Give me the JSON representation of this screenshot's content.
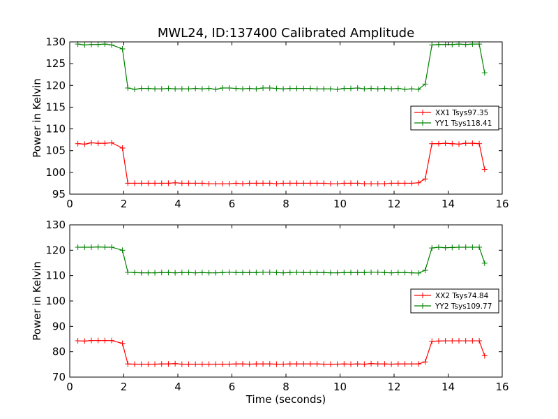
{
  "title": "MWL24, ID:137400 Calibrated Amplitude",
  "chart_data": [
    {
      "type": "line",
      "ylabel": "Power in Kelvin",
      "xlabel": "",
      "xlim": [
        0,
        16
      ],
      "ylim": [
        95,
        130
      ],
      "xticks": [
        "0",
        "2",
        "4",
        "6",
        "8",
        "10",
        "12",
        "14",
        "16"
      ],
      "yticks": [
        "95",
        "100",
        "105",
        "110",
        "115",
        "120",
        "125",
        "130"
      ],
      "legend_position": "right",
      "series": [
        {
          "name": "XX1 Tsys97.35",
          "color": "#ff0000",
          "x": [
            0.3,
            0.55,
            0.8,
            1.05,
            1.3,
            1.55,
            1.95,
            2.15,
            2.4,
            2.65,
            2.9,
            3.15,
            3.4,
            3.65,
            3.9,
            4.15,
            4.4,
            4.65,
            4.9,
            5.15,
            5.4,
            5.65,
            5.9,
            6.15,
            6.4,
            6.65,
            6.9,
            7.15,
            7.4,
            7.65,
            7.9,
            8.15,
            8.4,
            8.65,
            8.9,
            9.15,
            9.4,
            9.65,
            9.9,
            10.15,
            10.4,
            10.65,
            10.9,
            11.15,
            11.4,
            11.65,
            11.9,
            12.15,
            12.4,
            12.65,
            12.9,
            13.15,
            13.4,
            13.65,
            13.9,
            14.15,
            14.4,
            14.65,
            14.9,
            15.15,
            15.35
          ],
          "y": [
            106.6,
            106.5,
            106.8,
            106.7,
            106.7,
            106.8,
            105.6,
            97.5,
            97.5,
            97.5,
            97.5,
            97.5,
            97.5,
            97.5,
            97.6,
            97.5,
            97.5,
            97.5,
            97.5,
            97.4,
            97.4,
            97.4,
            97.4,
            97.5,
            97.4,
            97.5,
            97.5,
            97.5,
            97.5,
            97.4,
            97.5,
            97.5,
            97.5,
            97.5,
            97.5,
            97.5,
            97.5,
            97.4,
            97.4,
            97.5,
            97.5,
            97.5,
            97.4,
            97.4,
            97.4,
            97.4,
            97.5,
            97.5,
            97.5,
            97.5,
            97.6,
            98.5,
            106.6,
            106.6,
            106.7,
            106.6,
            106.5,
            106.7,
            106.7,
            106.6,
            100.7
          ]
        },
        {
          "name": "YY1 Tsys118.41",
          "color": "#008000",
          "x": [
            0.3,
            0.55,
            0.8,
            1.05,
            1.3,
            1.55,
            1.95,
            2.15,
            2.4,
            2.65,
            2.9,
            3.15,
            3.4,
            3.65,
            3.9,
            4.15,
            4.4,
            4.65,
            4.9,
            5.15,
            5.4,
            5.65,
            5.9,
            6.15,
            6.4,
            6.65,
            6.9,
            7.15,
            7.4,
            7.65,
            7.9,
            8.15,
            8.4,
            8.65,
            8.9,
            9.15,
            9.4,
            9.65,
            9.9,
            10.15,
            10.4,
            10.65,
            10.9,
            11.15,
            11.4,
            11.65,
            11.9,
            12.15,
            12.4,
            12.65,
            12.9,
            13.15,
            13.4,
            13.65,
            13.9,
            14.15,
            14.4,
            14.65,
            14.9,
            15.15,
            15.35
          ],
          "y": [
            129.5,
            129.3,
            129.4,
            129.4,
            129.5,
            129.3,
            128.4,
            119.4,
            119.1,
            119.3,
            119.3,
            119.2,
            119.2,
            119.3,
            119.2,
            119.2,
            119.2,
            119.3,
            119.2,
            119.3,
            119.1,
            119.4,
            119.4,
            119.3,
            119.2,
            119.3,
            119.2,
            119.4,
            119.4,
            119.3,
            119.2,
            119.3,
            119.3,
            119.3,
            119.3,
            119.2,
            119.2,
            119.2,
            119.1,
            119.3,
            119.3,
            119.4,
            119.2,
            119.3,
            119.2,
            119.3,
            119.2,
            119.3,
            119.1,
            119.2,
            119.1,
            120.3,
            129.3,
            129.4,
            129.4,
            129.4,
            129.5,
            129.4,
            129.5,
            129.5,
            122.9
          ]
        }
      ]
    },
    {
      "type": "line",
      "ylabel": "Power in Kelvin",
      "xlabel": "Time (seconds)",
      "xlim": [
        0,
        16
      ],
      "ylim": [
        70,
        130
      ],
      "xticks": [
        "0",
        "2",
        "4",
        "6",
        "8",
        "10",
        "12",
        "14",
        "16"
      ],
      "yticks": [
        "70",
        "80",
        "90",
        "100",
        "110",
        "120",
        "130"
      ],
      "legend_position": "right",
      "series": [
        {
          "name": "XX2 Tsys74.84",
          "color": "#ff0000",
          "x": [
            0.3,
            0.55,
            0.8,
            1.05,
            1.3,
            1.55,
            1.95,
            2.15,
            2.4,
            2.65,
            2.9,
            3.15,
            3.4,
            3.65,
            3.9,
            4.15,
            4.4,
            4.65,
            4.9,
            5.15,
            5.4,
            5.65,
            5.9,
            6.15,
            6.4,
            6.65,
            6.9,
            7.15,
            7.4,
            7.65,
            7.9,
            8.15,
            8.4,
            8.65,
            8.9,
            9.15,
            9.4,
            9.65,
            9.9,
            10.15,
            10.4,
            10.65,
            10.9,
            11.15,
            11.4,
            11.65,
            11.9,
            12.15,
            12.4,
            12.65,
            12.9,
            13.15,
            13.4,
            13.65,
            13.9,
            14.15,
            14.4,
            14.65,
            14.9,
            15.15,
            15.35
          ],
          "y": [
            84.3,
            84.2,
            84.4,
            84.4,
            84.4,
            84.4,
            83.3,
            75.2,
            75.1,
            75.1,
            75.1,
            75.1,
            75.2,
            75.2,
            75.3,
            75.1,
            75.1,
            75.1,
            75.1,
            75.1,
            75.1,
            75.1,
            75.1,
            75.2,
            75.2,
            75.1,
            75.2,
            75.2,
            75.2,
            75.1,
            75.1,
            75.2,
            75.2,
            75.2,
            75.2,
            75.2,
            75.1,
            75.1,
            75.1,
            75.2,
            75.1,
            75.2,
            75.1,
            75.3,
            75.2,
            75.2,
            75.1,
            75.2,
            75.2,
            75.2,
            75.2,
            76.0,
            84.1,
            84.2,
            84.3,
            84.3,
            84.3,
            84.3,
            84.3,
            84.3,
            78.4
          ]
        },
        {
          "name": "YY2 Tsys109.77",
          "color": "#008000",
          "x": [
            0.3,
            0.55,
            0.8,
            1.05,
            1.3,
            1.55,
            1.95,
            2.15,
            2.4,
            2.65,
            2.9,
            3.15,
            3.4,
            3.65,
            3.9,
            4.15,
            4.4,
            4.65,
            4.9,
            5.15,
            5.4,
            5.65,
            5.9,
            6.15,
            6.4,
            6.65,
            6.9,
            7.15,
            7.4,
            7.65,
            7.9,
            8.15,
            8.4,
            8.65,
            8.9,
            9.15,
            9.4,
            9.65,
            9.9,
            10.15,
            10.4,
            10.65,
            10.9,
            11.15,
            11.4,
            11.65,
            11.9,
            12.15,
            12.4,
            12.65,
            12.9,
            13.15,
            13.4,
            13.65,
            13.9,
            14.15,
            14.4,
            14.65,
            14.9,
            15.15,
            15.35
          ],
          "y": [
            121.2,
            121.2,
            121.2,
            121.3,
            121.2,
            121.2,
            120.0,
            111.3,
            111.2,
            111.1,
            111.1,
            111.1,
            111.2,
            111.2,
            111.1,
            111.2,
            111.2,
            111.1,
            111.2,
            111.1,
            111.1,
            111.2,
            111.3,
            111.2,
            111.2,
            111.2,
            111.2,
            111.3,
            111.3,
            111.2,
            111.1,
            111.2,
            111.3,
            111.2,
            111.2,
            111.2,
            111.2,
            111.1,
            111.1,
            111.2,
            111.2,
            111.2,
            111.2,
            111.3,
            111.3,
            111.2,
            111.1,
            111.2,
            111.2,
            111.1,
            111.0,
            112.1,
            120.9,
            121.2,
            121.0,
            121.1,
            121.2,
            121.2,
            121.2,
            121.2,
            114.9
          ]
        }
      ]
    }
  ]
}
